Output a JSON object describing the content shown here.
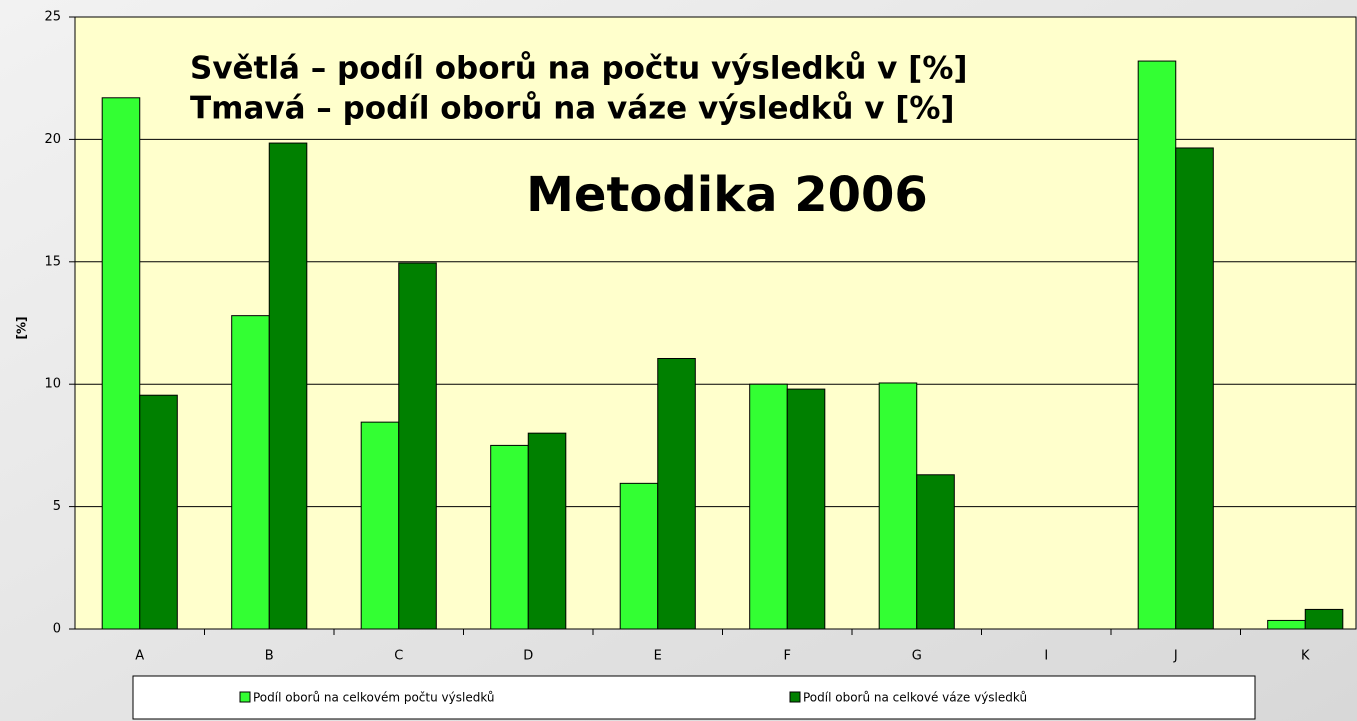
{
  "chart_data": {
    "type": "bar",
    "annotations": [
      "Světlá – podíl oborů na počtu výsledků v [%]",
      "Tmavá – podíl oborů na váze výsledků v [%]",
      "Metodika 2006"
    ],
    "y_label": "[%]",
    "categories": [
      "A",
      "B",
      "C",
      "D",
      "E",
      "F",
      "G",
      "I",
      "J",
      "K"
    ],
    "series": [
      {
        "name": "Podíl oborů na celkovém počtu výsledků",
        "color": "#33ff33",
        "values": [
          21.7,
          12.8,
          8.45,
          7.5,
          5.95,
          10.0,
          10.05,
          0,
          23.2,
          0.35
        ]
      },
      {
        "name": "Podíl oborů na celkové váze výsledků",
        "color": "#008000",
        "values": [
          9.55,
          19.85,
          14.95,
          8.0,
          11.05,
          9.8,
          6.3,
          0,
          19.65,
          0.8
        ]
      }
    ],
    "ylim": [
      0,
      25
    ],
    "yticks": [
      0,
      5,
      10,
      15,
      20,
      25
    ],
    "grid": true,
    "legend": "bottom"
  }
}
